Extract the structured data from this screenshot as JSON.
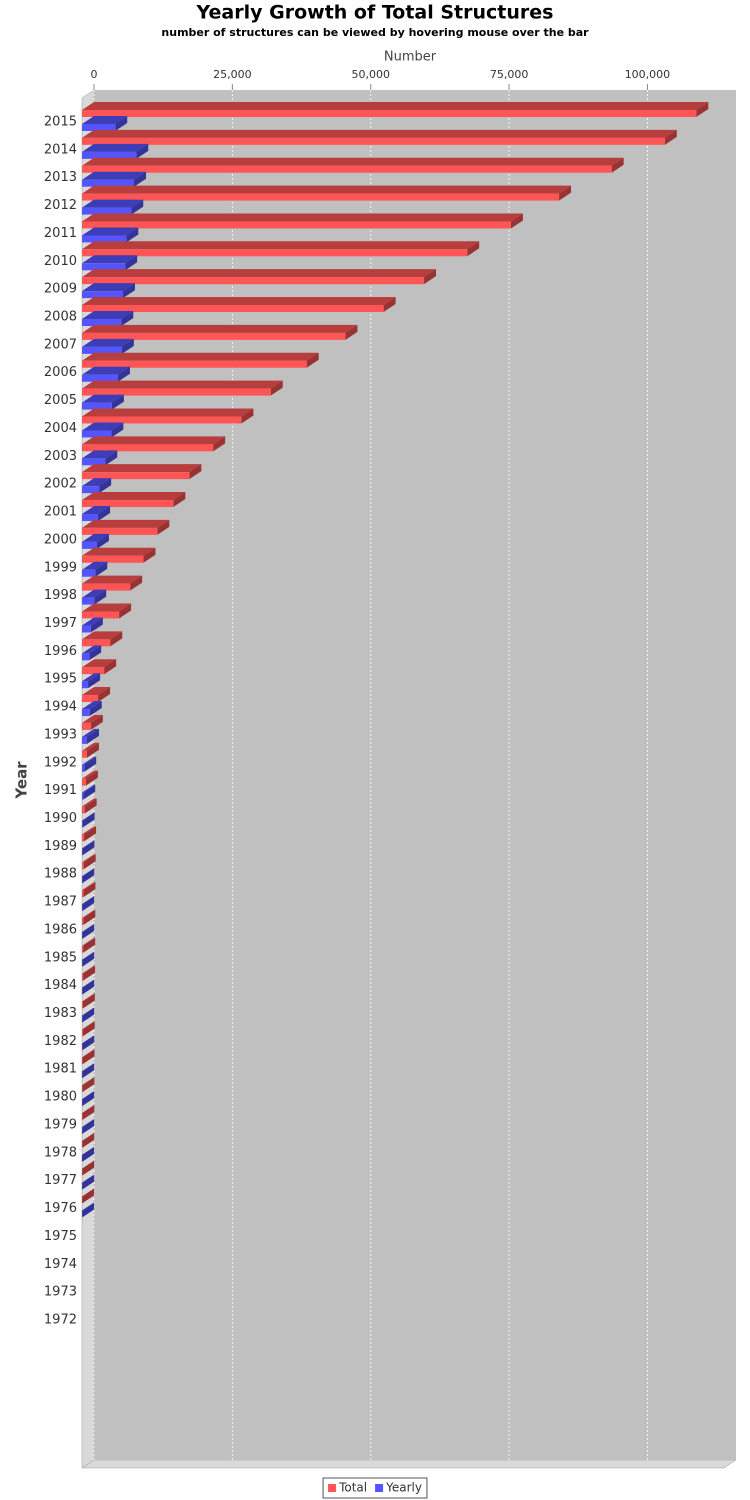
{
  "chart_data": {
    "type": "bar3d-horizontal",
    "title": "Yearly Growth of Total Structures",
    "subtitle": "number of structures can be viewed by hovering mouse over the bar",
    "x_label": "Number",
    "y_label": "Year",
    "categories": [
      "2015",
      "2014",
      "2013",
      "2012",
      "2011",
      "2010",
      "2009",
      "2008",
      "2007",
      "2006",
      "2005",
      "2004",
      "2003",
      "2002",
      "2001",
      "2000",
      "1999",
      "1998",
      "1997",
      "1996",
      "1995",
      "1994",
      "1993",
      "1992",
      "1991",
      "1990",
      "1989",
      "1988",
      "1987",
      "1986",
      "1985",
      "1984",
      "1983",
      "1982",
      "1981",
      "1980",
      "1979",
      "1978",
      "1977",
      "1976",
      "1975",
      "1974",
      "1973",
      "1972"
    ],
    "series": [
      {
        "name": "Total",
        "color": "#ff5555",
        "values": [
          111000,
          105300,
          95700,
          86200,
          77500,
          69600,
          61800,
          54500,
          47600,
          40600,
          34100,
          28800,
          23700,
          19400,
          16500,
          13600,
          11100,
          8700,
          6700,
          5100,
          4000,
          2900,
          1600,
          900,
          700,
          480,
          370,
          300,
          260,
          230,
          210,
          190,
          160,
          130,
          90,
          70,
          60,
          40,
          30,
          13,
          null,
          null,
          null,
          null
        ]
      },
      {
        "name": "Yearly",
        "color": "#5555ff",
        "values": [
          6000,
          9800,
          9400,
          8900,
          8000,
          7800,
          7400,
          7100,
          7200,
          6500,
          5400,
          5300,
          4200,
          3100,
          2900,
          2700,
          2400,
          2200,
          1600,
          1300,
          1100,
          1400,
          900,
          400,
          220,
          110,
          70,
          40,
          30,
          20,
          30,
          30,
          30,
          40,
          20,
          20,
          20,
          10,
          20,
          13,
          null,
          null,
          null,
          null
        ]
      }
    ],
    "xlim": [
      0,
      116000
    ],
    "xticks": [
      0,
      {
        "value": 25000,
        "label": "25,000"
      },
      {
        "value": 50000,
        "label": "50,000"
      },
      {
        "value": 75000,
        "label": "75,000"
      },
      {
        "value": 100000,
        "label": "100,000"
      }
    ],
    "grid": true,
    "legend": "bottom"
  }
}
